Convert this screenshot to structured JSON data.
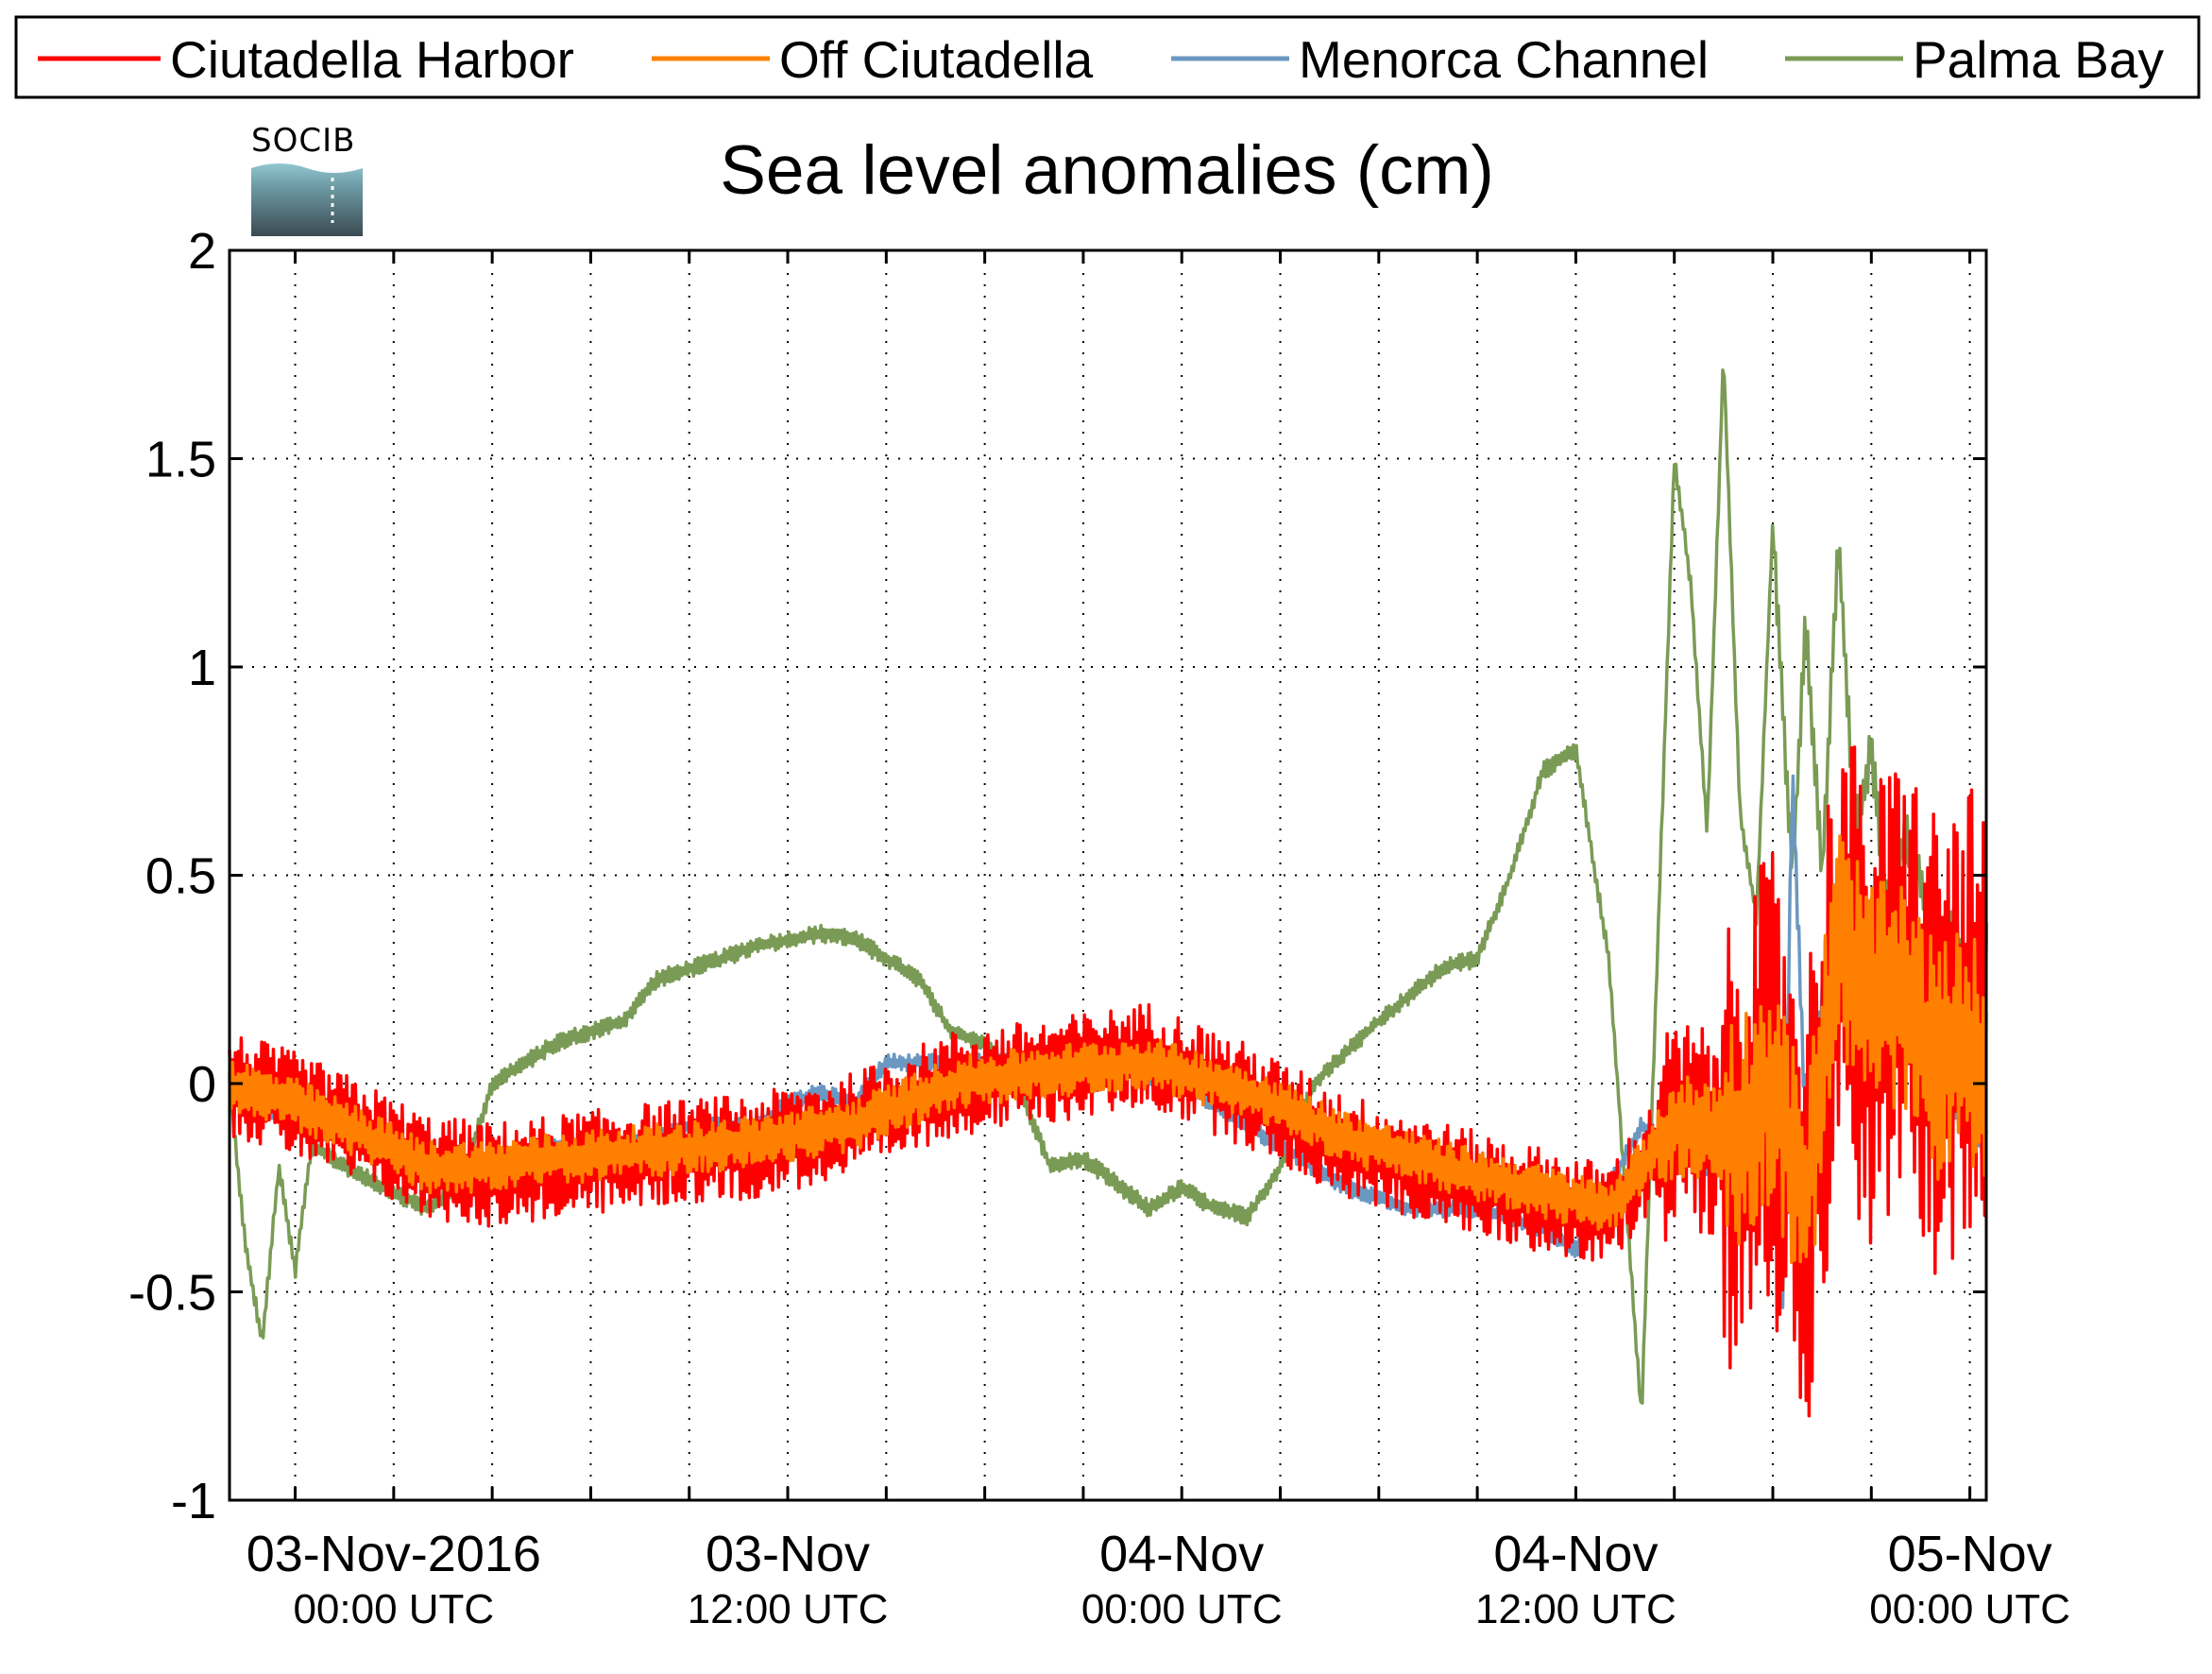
{
  "chart_data": {
    "type": "line",
    "title": "Sea level anomalies (cm)",
    "xlabel": "",
    "ylabel": "",
    "ylim": [
      -1,
      2
    ],
    "yticks": [
      -1,
      -0.5,
      0,
      0.5,
      1,
      1.5,
      2
    ],
    "ytick_labels": [
      "-1",
      "-0.5",
      "0",
      "0.5",
      "1",
      "1.5",
      "2"
    ],
    "x_unit": "hours since 03-Nov-2016 00:00 UTC",
    "xlim": [
      -5,
      48.5
    ],
    "grid": true,
    "legend_position": "top",
    "xticks_major": [
      {
        "x": 0,
        "line1": "03-Nov-2016",
        "line2": "00:00 UTC"
      },
      {
        "x": 12,
        "line1": "03-Nov",
        "line2": "12:00 UTC"
      },
      {
        "x": 24,
        "line1": "04-Nov",
        "line2": "00:00 UTC"
      },
      {
        "x": 36,
        "line1": "04-Nov",
        "line2": "12:00 UTC"
      },
      {
        "x": 48,
        "line1": "05-Nov",
        "line2": "00:00 UTC"
      }
    ],
    "xticks_minor": [
      -3,
      3,
      6,
      9,
      15,
      18,
      21,
      27,
      30,
      33,
      39,
      42,
      45
    ],
    "logo": {
      "text": "SOCIB"
    },
    "series": [
      {
        "name": "Ciutadella Harbor",
        "color": "#ff0000",
        "noise": "high",
        "x": [
          -5,
          -3,
          -1,
          1,
          3,
          5,
          8,
          11,
          14,
          17,
          20,
          23,
          26,
          29,
          32,
          35,
          37,
          39,
          41,
          42,
          43,
          44,
          45,
          46,
          47,
          48,
          48.5
        ],
        "y": [
          0.0,
          -0.05,
          -0.12,
          -0.2,
          -0.22,
          -0.2,
          -0.17,
          -0.15,
          -0.1,
          0.0,
          0.03,
          0.07,
          -0.03,
          -0.15,
          -0.22,
          -0.28,
          -0.32,
          -0.1,
          -0.12,
          0.0,
          -0.3,
          0.35,
          0.15,
          0.25,
          0.1,
          0.15,
          0.05
        ]
      },
      {
        "name": "Off Ciutadella",
        "color": "#ff8000",
        "noise": "mid",
        "x": [
          -5,
          -3,
          -1,
          1,
          3,
          5,
          8,
          11,
          14,
          17,
          20,
          23,
          26,
          29,
          32,
          35,
          37,
          39,
          41,
          42,
          43,
          44,
          45,
          46,
          47,
          48,
          48.5
        ],
        "y": [
          0.0,
          -0.05,
          -0.12,
          -0.2,
          -0.2,
          -0.18,
          -0.16,
          -0.14,
          -0.1,
          0.0,
          0.03,
          0.05,
          -0.02,
          -0.13,
          -0.2,
          -0.26,
          -0.3,
          -0.1,
          -0.12,
          0.0,
          -0.3,
          0.35,
          0.2,
          0.2,
          0.05,
          0.1,
          0.0
        ]
      },
      {
        "name": "Menorca Channel",
        "color": "#6b98c1",
        "noise": "low",
        "x": [
          -5,
          -3,
          -1,
          1,
          3,
          5,
          7,
          9,
          11,
          12,
          13,
          14,
          15,
          17,
          19,
          21,
          24,
          27,
          29,
          31,
          33,
          35,
          36,
          38,
          40,
          41,
          42,
          42.3,
          42.6,
          43,
          44,
          45,
          46,
          47,
          48,
          48.5
        ],
        "y": [
          0.0,
          -0.1,
          -0.15,
          -0.2,
          -0.2,
          -0.15,
          -0.15,
          -0.1,
          -0.1,
          -0.05,
          -0.02,
          -0.05,
          0.05,
          0.05,
          0.05,
          0.05,
          0.0,
          -0.15,
          -0.25,
          -0.3,
          -0.3,
          -0.35,
          -0.4,
          -0.1,
          -0.2,
          -0.05,
          -0.3,
          -0.5,
          0.75,
          -0.1,
          0.5,
          0.2,
          0.25,
          0.0,
          -0.1,
          -0.15
        ]
      },
      {
        "name": "Palma Bay",
        "color": "#7a9b55",
        "noise": "low",
        "x": [
          -5,
          -4.5,
          -4,
          -3.5,
          -3,
          -2.5,
          -1,
          1,
          2,
          3,
          5,
          7,
          8,
          10,
          11,
          13,
          14,
          15,
          16,
          17,
          18,
          19,
          20,
          21,
          23,
          24,
          25,
          26,
          27,
          28,
          30,
          32,
          33,
          34,
          35,
          36,
          37,
          38,
          39,
          39.5,
          40,
          40.5,
          41,
          41.5,
          42,
          42.3,
          42.6,
          43,
          43.5,
          44,
          44.5,
          45,
          45.5,
          46,
          46.5,
          47,
          47.5,
          48,
          48.5
        ],
        "y": [
          0.0,
          -0.4,
          -0.62,
          -0.2,
          -0.45,
          -0.15,
          -0.22,
          -0.3,
          -0.25,
          0.0,
          0.1,
          0.15,
          0.25,
          0.3,
          0.33,
          0.36,
          0.35,
          0.3,
          0.25,
          0.12,
          0.1,
          0.0,
          -0.2,
          -0.18,
          -0.3,
          -0.25,
          -0.3,
          -0.32,
          -0.2,
          0.0,
          0.15,
          0.28,
          0.3,
          0.5,
          0.75,
          0.8,
          0.3,
          -0.8,
          1.5,
          1.2,
          0.6,
          1.75,
          0.65,
          0.4,
          1.35,
          0.9,
          0.5,
          1.1,
          0.5,
          1.3,
          0.6,
          0.8,
          0.4,
          0.6,
          0.5,
          0.3,
          0.4,
          0.2,
          0.3
        ]
      }
    ]
  }
}
